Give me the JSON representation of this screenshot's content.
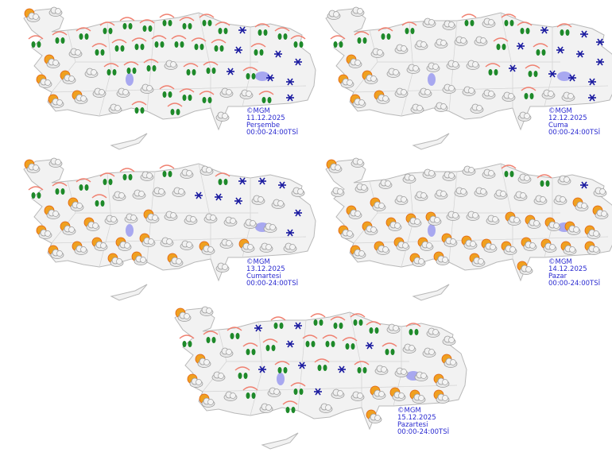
{
  "colors": {
    "land": "#f2f2f2",
    "border": "#b8b8b8",
    "lake": "#a8a8f0",
    "label": "#2a2ad0",
    "rain_drop": "#1e8a2a",
    "snow": "#1a1aa0",
    "sun": "#f0a020"
  },
  "icon_types": {
    "c": "cloudy-icon",
    "p": "partly-cloudy-icon",
    "r": "rain-icon",
    "s": "snow-icon"
  },
  "panels": [
    {
      "credit": "©MGM",
      "date": "11.12.2025",
      "day": "Perşembe",
      "time": "00:00-24:00TSİ",
      "forecast_rows": [
        "pcrrrrrrrrrrsrrr",
        "pcrrrrrrrsrss",
        "ppcrrrcrrsrss",
        "ppcccrrrccrs",
        "crrc"
      ]
    },
    {
      "credit": "©MGM",
      "date": "12.12.2025",
      "day": "Cuma",
      "time": "00:00-24:00TSİ",
      "forecast_rows": [
        "ccrrrrccrcrrsrss",
        "pccccccrsrsss",
        "ppcccccrsrsss",
        "ppccccccrccs",
        "cccc"
      ]
    },
    {
      "credit": "©MGM",
      "date": "13.12.2025",
      "day": "Cumartesi",
      "time": "00:00-24:00TSİ",
      "forecast_rows": [
        "pcrrrrrcrccrsssc",
        "pprccccsssccs",
        "pppccpccccccs",
        "pppppccpcpcc",
        "pppc"
      ]
    },
    {
      "credit": "©MGM",
      "date": "14.12.2025",
      "day": "Pazar",
      "time": "00:00-24:00TSİ",
      "forecast_rows": [
        "pcccccccccrcrcsc",
        "ppcccccccccpp",
        "pppppcccppppp",
        "pppppppppppp",
        "pppp"
      ]
    },
    {
      "credit": "©MGM",
      "date": "15.12.2025",
      "day": "Pazartesi",
      "time": "00:00-24:00TSİ",
      "forecast_rows": [
        "pcrrrsrsrrrrcrcc",
        "pcrrsrrrsrccp",
        "pcrsrsrsrcccp",
        "pcrcrsccpppp",
        "crcp"
      ]
    }
  ]
}
